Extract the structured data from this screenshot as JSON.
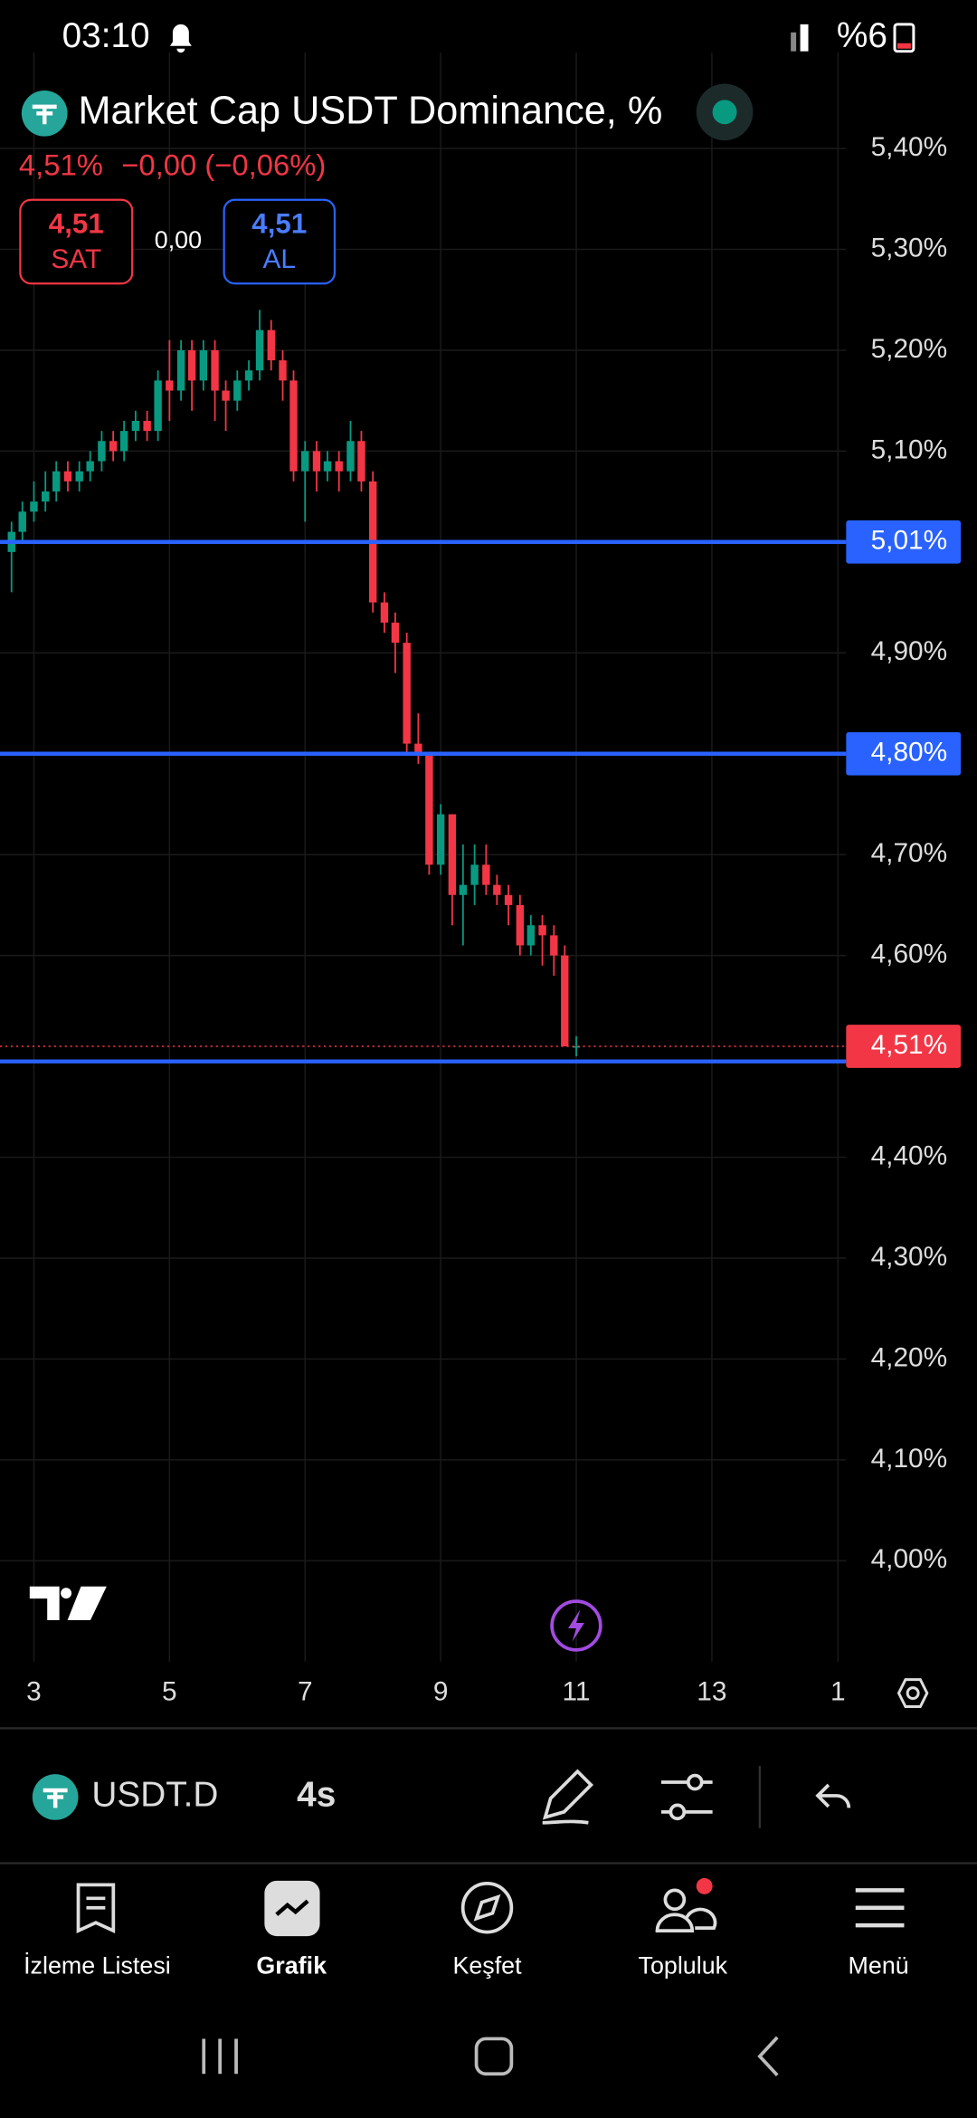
{
  "status_bar": {
    "time": "03:10",
    "battery": "%6"
  },
  "header": {
    "title": "Market Cap USDT Dominance, %",
    "last": "4,51%",
    "change": "−0,00 (−0,06%)",
    "sell_price": "4,51",
    "sell_label": "SAT",
    "spread": "0,00",
    "buy_price": "4,51",
    "buy_label": "AL"
  },
  "toolbar": {
    "symbol": "USDT.D",
    "interval": "4s"
  },
  "nav": [
    {
      "label": "İzleme Listesi"
    },
    {
      "label": "Grafik"
    },
    {
      "label": "Keşfet"
    },
    {
      "label": "Topluluk"
    },
    {
      "label": "Menü"
    }
  ],
  "chart_data": {
    "type": "candlestick",
    "up_color": "#089981",
    "down_color": "#f23645",
    "grid": true,
    "x": [
      2.67,
      2.83,
      3.0,
      3.17,
      3.33,
      3.5,
      3.67,
      3.83,
      4.0,
      4.17,
      4.33,
      4.5,
      4.67,
      4.83,
      5.0,
      5.17,
      5.33,
      5.5,
      5.67,
      5.83,
      6.0,
      6.17,
      6.33,
      6.5,
      6.67,
      6.83,
      7.0,
      7.17,
      7.33,
      7.5,
      7.67,
      7.83,
      8.0,
      8.17,
      8.33,
      8.5,
      8.67,
      8.83,
      9.0,
      9.17,
      9.33,
      9.5,
      9.67,
      9.83,
      10.0,
      10.17,
      10.33,
      10.5,
      10.67,
      10.83,
      11.0
    ],
    "open": [
      5.0,
      5.02,
      5.04,
      5.05,
      5.06,
      5.08,
      5.07,
      5.08,
      5.09,
      5.11,
      5.1,
      5.12,
      5.13,
      5.12,
      5.17,
      5.16,
      5.2,
      5.17,
      5.2,
      5.16,
      5.15,
      5.17,
      5.18,
      5.22,
      5.19,
      5.17,
      5.08,
      5.1,
      5.08,
      5.09,
      5.08,
      5.11,
      5.07,
      4.95,
      4.93,
      4.91,
      4.81,
      4.8,
      4.69,
      4.74,
      4.66,
      4.67,
      4.69,
      4.67,
      4.66,
      4.65,
      4.61,
      4.63,
      4.62,
      4.6,
      4.51
    ],
    "high": [
      5.03,
      5.05,
      5.07,
      5.08,
      5.09,
      5.09,
      5.09,
      5.1,
      5.12,
      5.12,
      5.13,
      5.14,
      5.14,
      5.18,
      5.21,
      5.21,
      5.21,
      5.21,
      5.21,
      5.17,
      5.18,
      5.19,
      5.24,
      5.23,
      5.2,
      5.18,
      5.11,
      5.11,
      5.1,
      5.1,
      5.13,
      5.12,
      5.08,
      4.96,
      4.94,
      4.92,
      4.84,
      4.8,
      4.75,
      4.74,
      4.71,
      4.71,
      4.71,
      4.68,
      4.67,
      4.66,
      4.64,
      4.64,
      4.63,
      4.61,
      4.52
    ],
    "low": [
      4.96,
      5.01,
      5.03,
      5.04,
      5.05,
      5.06,
      5.06,
      5.07,
      5.08,
      5.09,
      5.09,
      5.11,
      5.11,
      5.11,
      5.13,
      5.15,
      5.14,
      5.16,
      5.13,
      5.12,
      5.14,
      5.16,
      5.17,
      5.18,
      5.15,
      5.07,
      5.03,
      5.06,
      5.07,
      5.06,
      5.07,
      5.06,
      4.94,
      4.92,
      4.88,
      4.8,
      4.79,
      4.68,
      4.68,
      4.63,
      4.61,
      4.65,
      4.66,
      4.65,
      4.63,
      4.6,
      4.6,
      4.59,
      4.58,
      4.51,
      4.5
    ],
    "close": [
      5.02,
      5.04,
      5.05,
      5.06,
      5.08,
      5.07,
      5.08,
      5.09,
      5.11,
      5.1,
      5.12,
      5.13,
      5.12,
      5.17,
      5.16,
      5.2,
      5.17,
      5.2,
      5.16,
      5.15,
      5.17,
      5.18,
      5.22,
      5.19,
      5.17,
      5.08,
      5.1,
      5.08,
      5.09,
      5.08,
      5.11,
      5.07,
      4.95,
      4.93,
      4.91,
      4.81,
      4.8,
      4.69,
      4.74,
      4.66,
      4.67,
      4.69,
      4.67,
      4.66,
      4.65,
      4.61,
      4.63,
      4.62,
      4.6,
      4.51,
      4.51
    ],
    "xlim": [
      2.5,
      14.98
    ],
    "xticks": [
      3,
      5,
      7,
      9,
      11,
      13,
      {
        "value": 14.86,
        "label": "1"
      }
    ],
    "ylim": [
      3.9,
      5.495
    ],
    "yticks": [
      {
        "value": 5.4,
        "label": "5,40%"
      },
      {
        "value": 5.3,
        "label": "5,30%"
      },
      {
        "value": 5.2,
        "label": "5,20%"
      },
      {
        "value": 5.1,
        "label": "5,10%"
      },
      {
        "value": 4.9,
        "label": "4,90%"
      },
      {
        "value": 4.7,
        "label": "4,70%"
      },
      {
        "value": 4.6,
        "label": "4,60%"
      },
      {
        "value": 4.4,
        "label": "4,40%"
      },
      {
        "value": 4.3,
        "label": "4,30%"
      },
      {
        "value": 4.2,
        "label": "4,20%"
      },
      {
        "value": 4.1,
        "label": "4,10%"
      },
      {
        "value": 4.0,
        "label": "4,00%"
      }
    ],
    "hline_color": "#2962ff",
    "hlines": [
      {
        "value": 5.01,
        "label": "5,01%"
      },
      {
        "value": 4.8,
        "label": "4,80%"
      },
      {
        "value": 4.495
      }
    ],
    "last_price": {
      "value": 4.51,
      "label": "4,51%",
      "color": "#f23645"
    }
  }
}
